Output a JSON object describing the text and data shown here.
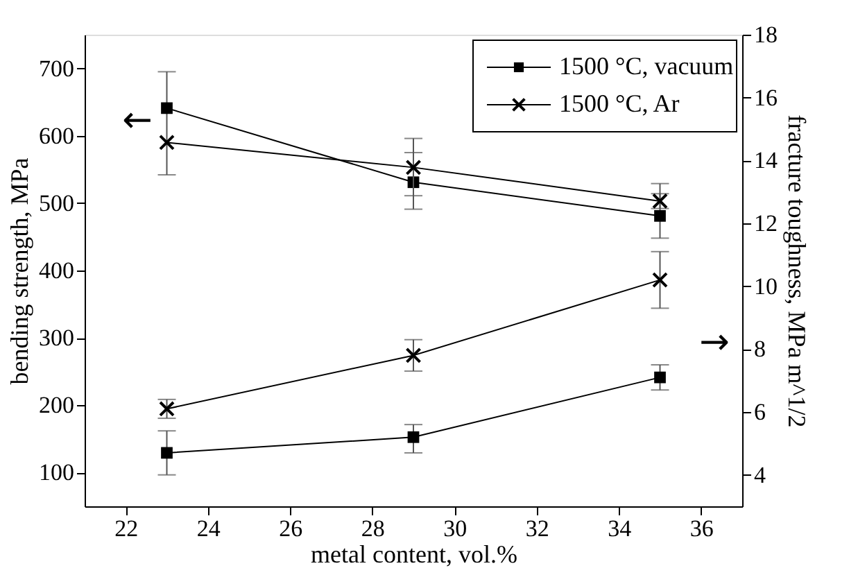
{
  "chart_data": {
    "type": "line",
    "xlabel": "metal content, vol.%",
    "ylabel": "bending strength, MPa",
    "y2label": "fracture toughness, MPa m^1/2",
    "x": [
      23,
      29,
      35
    ],
    "xlim": [
      21,
      37
    ],
    "xticks": [
      22,
      24,
      26,
      28,
      30,
      32,
      34,
      36
    ],
    "ylim": [
      50,
      750
    ],
    "yticks": [
      100,
      200,
      300,
      400,
      500,
      600,
      700
    ],
    "y2lim": [
      3,
      18
    ],
    "y2ticks": [
      4,
      6,
      8,
      10,
      12,
      14,
      16,
      18
    ],
    "series": [
      {
        "name": "1500 °C, vacuum",
        "color": "#000000",
        "marker": "square",
        "values": [
          641,
          531,
          481
        ],
        "errors": [
          [
            542,
            695
          ],
          [
            491,
            575
          ],
          [
            448,
            514
          ]
        ]
      },
      {
        "name": "1500 °C, Ar",
        "color": "#000000",
        "marker": "cross",
        "values": [
          590,
          553,
          503
        ],
        "errors": [
          null,
          [
            511,
            596
          ],
          [
            492,
            529
          ]
        ]
      },
      {
        "color": "#000000",
        "marker": "square",
        "axis": "y2",
        "values": [
          4.7,
          5.2,
          7.1
        ],
        "errors": [
          [
            4.0,
            5.4
          ],
          [
            4.7,
            5.6
          ],
          [
            6.7,
            7.5
          ]
        ]
      },
      {
        "color": "#000000",
        "marker": "cross",
        "axis": "y2",
        "values": [
          6.1,
          7.8,
          10.2
        ],
        "errors": [
          [
            5.8,
            6.4
          ],
          [
            7.3,
            8.3
          ],
          [
            9.3,
            11.1
          ]
        ]
      }
    ],
    "annotations": [
      "←",
      "→"
    ],
    "legend": "top right",
    "grid": false
  }
}
